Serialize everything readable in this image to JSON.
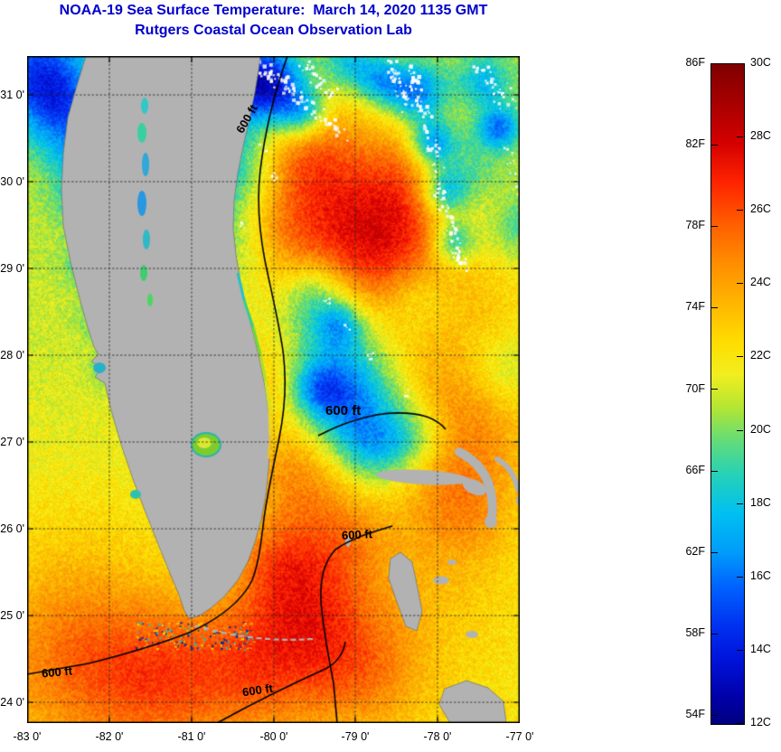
{
  "header": {
    "title_line1": "NOAA-19 Sea Surface Temperature:  March 14, 2020 1135 GMT",
    "title_line2": "Rutgers Coastal Ocean Observation Lab",
    "title_color": "#0000cc"
  },
  "map": {
    "x_tick_labels": [
      "-83 0'",
      "-82 0'",
      "-81 0'",
      "-80 0'",
      "-79 0'",
      "-78 0'",
      "-77 0'"
    ],
    "y_tick_labels": [
      "31 0'",
      "30 0'",
      "29 0'",
      "28 0'",
      "27 0'",
      "26 0'",
      "25 0'",
      "24 0'"
    ],
    "contour_labels": [
      "600 ft",
      "600 ft",
      "600 ft",
      "600 ft",
      "600 ft"
    ],
    "land_color": "#b2b2b2",
    "cloud_color": "#ffffff",
    "grid_style": "dotted black graticule at 1-degree intervals"
  },
  "colorbar": {
    "f_labels": [
      "86F",
      "82F",
      "78F",
      "74F",
      "70F",
      "66F",
      "62F",
      "58F",
      "54F"
    ],
    "c_labels": [
      "30C",
      "28C",
      "26C",
      "24C",
      "22C",
      "20C",
      "18C",
      "16C",
      "14C",
      "12C"
    ],
    "gradient_stops": [
      [
        0.0,
        "#7f0000"
      ],
      [
        0.06,
        "#a80000"
      ],
      [
        0.12,
        "#d40000"
      ],
      [
        0.18,
        "#ff2400"
      ],
      [
        0.24,
        "#ff5c00"
      ],
      [
        0.3,
        "#ff8c00"
      ],
      [
        0.36,
        "#ffb400"
      ],
      [
        0.42,
        "#ffdc00"
      ],
      [
        0.47,
        "#f2ee1e"
      ],
      [
        0.52,
        "#b4e632"
      ],
      [
        0.57,
        "#64dc78"
      ],
      [
        0.62,
        "#28d2b4"
      ],
      [
        0.68,
        "#00c0f0"
      ],
      [
        0.74,
        "#009cfa"
      ],
      [
        0.79,
        "#0064ff"
      ],
      [
        0.85,
        "#0032f0"
      ],
      [
        0.9,
        "#0014dc"
      ],
      [
        0.96,
        "#0000a8"
      ],
      [
        1.0,
        "#000080"
      ]
    ]
  },
  "chart_data": {
    "type": "heatmap",
    "title": "NOAA-19 Sea Surface Temperature:  March 14, 2020 1135 GMT",
    "subtitle": "Rutgers Coastal Ocean Observation Lab",
    "x_ticks_longitude_deg_min": [
      "-83 0'",
      "-82 0'",
      "-81 0'",
      "-80 0'",
      "-79 0'",
      "-78 0'",
      "-77 0'"
    ],
    "y_ticks_latitude_deg_min": [
      "31 0'",
      "30 0'",
      "29 0'",
      "28 0'",
      "27 0'",
      "26 0'",
      "25 0'",
      "24 0'"
    ],
    "colorbar_scale": {
      "fahrenheit_ticks": [
        86,
        82,
        78,
        74,
        70,
        66,
        62,
        58,
        54
      ],
      "celsius_ticks": [
        30,
        28,
        26,
        24,
        22,
        20,
        18,
        16,
        14,
        12
      ],
      "max_color": "dark red (30C / 86F)",
      "min_color": "dark blue (12C / 54F)"
    },
    "contour_label_text": "600 ft",
    "contour_label_count": 5,
    "legend_position": "right",
    "grid": "on (dotted, 1-degree spacing)"
  }
}
